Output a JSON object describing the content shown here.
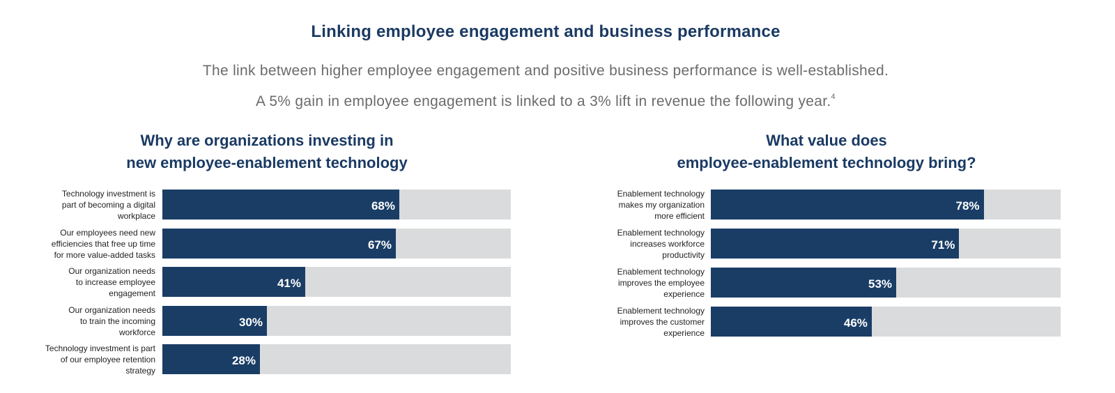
{
  "header": {
    "title": "Linking employee engagement and business performance",
    "subtitle_line1": "The link between higher employee engagement and positive business performance is well-established.",
    "subtitle_line2": "A 5% gain in employee engagement is linked to a 3% lift in revenue the following year.",
    "footnote_marker": "4"
  },
  "colors": {
    "bar": "#1a3d66",
    "track": "#d9dbdc",
    "title": "#1a3a63"
  },
  "chart_data": [
    {
      "type": "bar",
      "orientation": "horizontal",
      "title_line1": "Why are organizations investing in",
      "title_line2": "new employee-enablement technology",
      "xlim": [
        0,
        100
      ],
      "categories": [
        "Technology investment is part of becoming a digital workplace",
        "Our employees need new efficiencies that free up time for more value-added tasks",
        "Our organization needs to increase employee engagement",
        "Our organization needs to train the incoming workforce",
        "Technology investment is part of our employee retention strategy"
      ],
      "label_lines": [
        [
          "Technology investment is",
          "part of becoming a digital",
          "workplace"
        ],
        [
          "Our employees need new",
          "efficiencies that free up time",
          "for more value-added tasks"
        ],
        [
          "Our organization needs",
          "to increase employee",
          "engagement"
        ],
        [
          "Our organization needs",
          "to train the incoming",
          "workforce"
        ],
        [
          "Technology investment is part",
          "of our employee retention",
          "strategy"
        ]
      ],
      "values": [
        68,
        67,
        41,
        30,
        28
      ],
      "value_labels": [
        "68%",
        "67%",
        "41%",
        "30%",
        "28%"
      ]
    },
    {
      "type": "bar",
      "orientation": "horizontal",
      "title_line1": "What value does",
      "title_line2": "employee-enablement technology bring?",
      "xlim": [
        0,
        100
      ],
      "categories": [
        "Enablement technology makes my organization more efficient",
        "Enablement technology increases workforce productivity",
        "Enablement technology improves the employee experience",
        "Enablement technology improves the customer experience"
      ],
      "label_lines": [
        [
          "Enablement technology",
          "makes my organization",
          "more efficient"
        ],
        [
          "Enablement technology",
          "increases workforce",
          "productivity"
        ],
        [
          "Enablement technology",
          "improves the employee",
          "experience"
        ],
        [
          "Enablement technology",
          "improves the customer",
          "experience"
        ]
      ],
      "values": [
        78,
        71,
        53,
        46
      ],
      "value_labels": [
        "78%",
        "71%",
        "53%",
        "46%"
      ]
    }
  ]
}
